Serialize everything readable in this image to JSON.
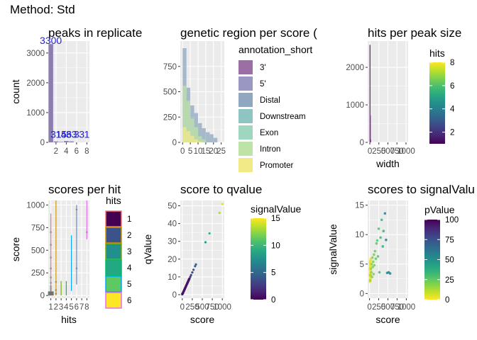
{
  "figure_title": "Method: Std",
  "chart_data": [
    {
      "type": "bar",
      "title": "peaks in replicate",
      "xlabel": "",
      "ylabel": "count",
      "x_ticks": [
        "2",
        "4",
        "6",
        "8"
      ],
      "y_ticks": [
        "0",
        "1000",
        "2000",
        "3000"
      ],
      "xlim": [
        0.5,
        8.5
      ],
      "ylim": [
        0,
        3400
      ],
      "bars": [
        {
          "x": 1,
          "value": 3300
        },
        {
          "x": 2,
          "value": 31
        },
        {
          "x": 3,
          "value": 15
        },
        {
          "x": 4,
          "value": 46
        },
        {
          "x": 5,
          "value": 33
        },
        {
          "x": 6,
          "value": 3
        },
        {
          "x": 7,
          "value": 3
        },
        {
          "x": 8,
          "value": 1
        }
      ],
      "bar_labels": [
        {
          "x": 1,
          "y": 3400,
          "text": "3300"
        },
        {
          "x": 2,
          "y": 250,
          "text": "31"
        },
        {
          "x": 3,
          "y": 250,
          "text": "15"
        },
        {
          "x": 4,
          "y": 250,
          "text": "46"
        },
        {
          "x": 5,
          "y": 250,
          "text": "33"
        },
        {
          "x": 6,
          "y": 250,
          "text": "3"
        },
        {
          "x": 7,
          "y": 250,
          "text": "3"
        },
        {
          "x": 8,
          "y": 250,
          "text": "1"
        }
      ],
      "bar_color": "#8c7fb0",
      "label_color": "#1f1fd6"
    },
    {
      "type": "bar",
      "title": "genetic region per score (",
      "xlabel": "",
      "ylabel": "",
      "x_ticks": [
        "0",
        "5",
        "10",
        "15",
        "20",
        "25"
      ],
      "y_ticks": [
        "0",
        "250",
        "500",
        "750"
      ],
      "xlim": [
        -1.5,
        27
      ],
      "ylim": [
        0,
        1000
      ],
      "bin_width": 2.5,
      "series": [
        {
          "name": "3'",
          "color": "#9b6fa6",
          "values": []
        },
        {
          "name": "5'",
          "color": "#9a98c2",
          "values": []
        },
        {
          "name": "Distal",
          "color": "#8fa8c0",
          "bins": [
            [
              0,
              930
            ],
            [
              2.5,
              540
            ],
            [
              5,
              365
            ],
            [
              7.5,
              290
            ],
            [
              10,
              190
            ],
            [
              12.5,
              140
            ],
            [
              15,
              100
            ],
            [
              17.5,
              80
            ],
            [
              20,
              45
            ]
          ]
        },
        {
          "name": "Downstream",
          "color": "#8ec5c2",
          "bins": []
        },
        {
          "name": "Exon",
          "color": "#9ed6c0",
          "bins": []
        },
        {
          "name": "Intron",
          "color": "#bde3a6",
          "bins": [
            [
              0,
              560
            ],
            [
              2.5,
              410
            ],
            [
              5,
              235
            ],
            [
              7.5,
              150
            ],
            [
              10,
              60
            ],
            [
              12.5,
              30
            ]
          ]
        },
        {
          "name": "Promoter",
          "color": "#f2e987",
          "bins": [
            [
              0,
              150
            ],
            [
              2.5,
              110
            ],
            [
              5,
              65
            ],
            [
              7.5,
              30
            ],
            [
              10,
              10
            ]
          ]
        }
      ],
      "legend": {
        "title": "annotation_short",
        "placement": "right"
      }
    },
    {
      "type": "bar",
      "title": "hits per peak size",
      "xlabel": "width",
      "ylabel": "",
      "x_ticks": [
        "0",
        "250",
        "500",
        "750",
        "1000"
      ],
      "y_ticks": [
        "0",
        "1000",
        "2000"
      ],
      "xlim": [
        -60,
        1060
      ],
      "ylim": [
        0,
        2700
      ],
      "bars": [
        {
          "x": 5,
          "value": 2600
        },
        {
          "x": 12,
          "value": 720
        },
        {
          "x": 20,
          "value": 80
        }
      ],
      "bar_color": "#7b2f8e",
      "colorbar": {
        "title": "hits",
        "ticks": [
          "2",
          "4",
          "6",
          "8"
        ],
        "range": [
          1,
          8
        ],
        "scale": "viridis"
      }
    },
    {
      "type": "scatter",
      "title": "scores per hit",
      "xlabel": "hits",
      "ylabel": "score",
      "x_ticks": [
        "1",
        "2",
        "3",
        "4",
        "5",
        "6",
        "7",
        "8"
      ],
      "y_ticks": [
        "0",
        "250",
        "500",
        "750",
        "1000"
      ],
      "xlim": [
        0.5,
        8.5
      ],
      "ylim": [
        -30,
        1050
      ],
      "vlines": [
        {
          "x": 1,
          "y0": 0,
          "y1": 905,
          "color": "#f8766d"
        },
        {
          "x": 2,
          "y0": 0,
          "y1": 1050,
          "color": "#cd9600"
        },
        {
          "x": 3,
          "y0": 0,
          "y1": 160,
          "color": "#7cae00"
        },
        {
          "x": 4,
          "y0": 0,
          "y1": 160,
          "color": "#00be67"
        },
        {
          "x": 5,
          "y0": 50,
          "y1": 665,
          "color": "#00a9ff"
        },
        {
          "x": 6,
          "y0": 120,
          "y1": 1000,
          "color": "#5d8be0"
        },
        {
          "x": 8,
          "y0": 620,
          "y1": 1050,
          "color": "#e76bf3"
        }
      ],
      "points": [
        {
          "x": 1,
          "y": 10
        },
        {
          "x": 1,
          "y": 25
        },
        {
          "x": 1,
          "y": 40
        },
        {
          "x": 1,
          "y": 60
        },
        {
          "x": 1,
          "y": 80
        },
        {
          "x": 1,
          "y": 100
        },
        {
          "x": 1,
          "y": 140
        },
        {
          "x": 1,
          "y": 200
        },
        {
          "x": 1,
          "y": 300
        },
        {
          "x": 1,
          "y": 420
        },
        {
          "x": 1,
          "y": 560
        },
        {
          "x": 1,
          "y": 700
        },
        {
          "x": 2,
          "y": 20
        },
        {
          "x": 2,
          "y": 60
        },
        {
          "x": 2,
          "y": 150
        },
        {
          "x": 6,
          "y": 300
        },
        {
          "x": 6,
          "y": 950
        },
        {
          "x": 8,
          "y": 700
        }
      ],
      "legend": {
        "title": "hits",
        "items": [
          "1",
          "2",
          "3",
          "4",
          "5",
          "6"
        ],
        "fills": [
          "#440154",
          "#3b528b",
          "#21908c",
          "#23a884",
          "#5ec962",
          "#fde725"
        ],
        "borders": [
          "#f8766d",
          "#cd9600",
          "#7cae00",
          "#00be67",
          "#00a9ff",
          "#e76bf3"
        ]
      }
    },
    {
      "type": "scatter",
      "title": "score to qvalue",
      "xlabel": "score",
      "ylabel": "qValue",
      "x_ticks": [
        "0",
        "250",
        "500",
        "750",
        "1000"
      ],
      "y_ticks": [
        "0",
        "10",
        "20",
        "30",
        "40",
        "50"
      ],
      "xlim": [
        -50,
        1050
      ],
      "ylim": [
        -2,
        53
      ],
      "points": [
        {
          "x": 0,
          "y": 0.5
        },
        {
          "x": 20,
          "y": 1
        },
        {
          "x": 40,
          "y": 2
        },
        {
          "x": 60,
          "y": 3
        },
        {
          "x": 80,
          "y": 4
        },
        {
          "x": 100,
          "y": 5
        },
        {
          "x": 120,
          "y": 6
        },
        {
          "x": 140,
          "y": 7
        },
        {
          "x": 160,
          "y": 8
        },
        {
          "x": 180,
          "y": 9
        },
        {
          "x": 200,
          "y": 10
        },
        {
          "x": 220,
          "y": 11
        },
        {
          "x": 250,
          "y": 12.5
        },
        {
          "x": 280,
          "y": 14
        },
        {
          "x": 320,
          "y": 16
        },
        {
          "x": 340,
          "y": 17
        },
        {
          "x": 580,
          "y": 29.5
        },
        {
          "x": 680,
          "y": 34.5
        },
        {
          "x": 930,
          "y": 46
        },
        {
          "x": 1000,
          "y": 51
        }
      ],
      "colorbar": {
        "title": "signalValue",
        "ticks": [
          "0",
          "5",
          "10",
          "15"
        ],
        "range": [
          0,
          15
        ],
        "scale": "viridis"
      }
    },
    {
      "type": "scatter",
      "title": "scores to signalValu",
      "xlabel": "score",
      "ylabel": "signalValue",
      "x_ticks": [
        "0",
        "250",
        "500",
        "750",
        "1000"
      ],
      "y_ticks": [
        "0",
        "5",
        "10",
        "15"
      ],
      "xlim": [
        -50,
        1050
      ],
      "ylim": [
        -0.8,
        15.8
      ],
      "points": [
        {
          "x": 20,
          "y": 2.2
        },
        {
          "x": 30,
          "y": 3.1
        },
        {
          "x": 40,
          "y": 4.2
        },
        {
          "x": 50,
          "y": 3.6
        },
        {
          "x": 60,
          "y": 5.0
        },
        {
          "x": 70,
          "y": 2.8
        },
        {
          "x": 80,
          "y": 6.1
        },
        {
          "x": 90,
          "y": 4.5
        },
        {
          "x": 100,
          "y": 5.4
        },
        {
          "x": 110,
          "y": 3.3
        },
        {
          "x": 120,
          "y": 6.6
        },
        {
          "x": 130,
          "y": 4.8
        },
        {
          "x": 150,
          "y": 7.2
        },
        {
          "x": 170,
          "y": 5.9
        },
        {
          "x": 190,
          "y": 8.5
        },
        {
          "x": 210,
          "y": 9.0
        },
        {
          "x": 230,
          "y": 6.3
        },
        {
          "x": 250,
          "y": 11.0
        },
        {
          "x": 270,
          "y": 3.6
        },
        {
          "x": 300,
          "y": 9.5
        },
        {
          "x": 330,
          "y": 12.5
        },
        {
          "x": 360,
          "y": 8.0
        },
        {
          "x": 380,
          "y": 10.6
        },
        {
          "x": 420,
          "y": 13.6
        },
        {
          "x": 450,
          "y": 9.1
        },
        {
          "x": 480,
          "y": 3.5
        },
        {
          "x": 520,
          "y": 3.6
        },
        {
          "x": 560,
          "y": 3.4
        }
      ],
      "colorbar": {
        "title": "pValue",
        "ticks": [
          "0",
          "25",
          "50",
          "75",
          "100"
        ],
        "range": [
          0,
          100
        ],
        "scale": "viridis_reversed"
      }
    }
  ]
}
